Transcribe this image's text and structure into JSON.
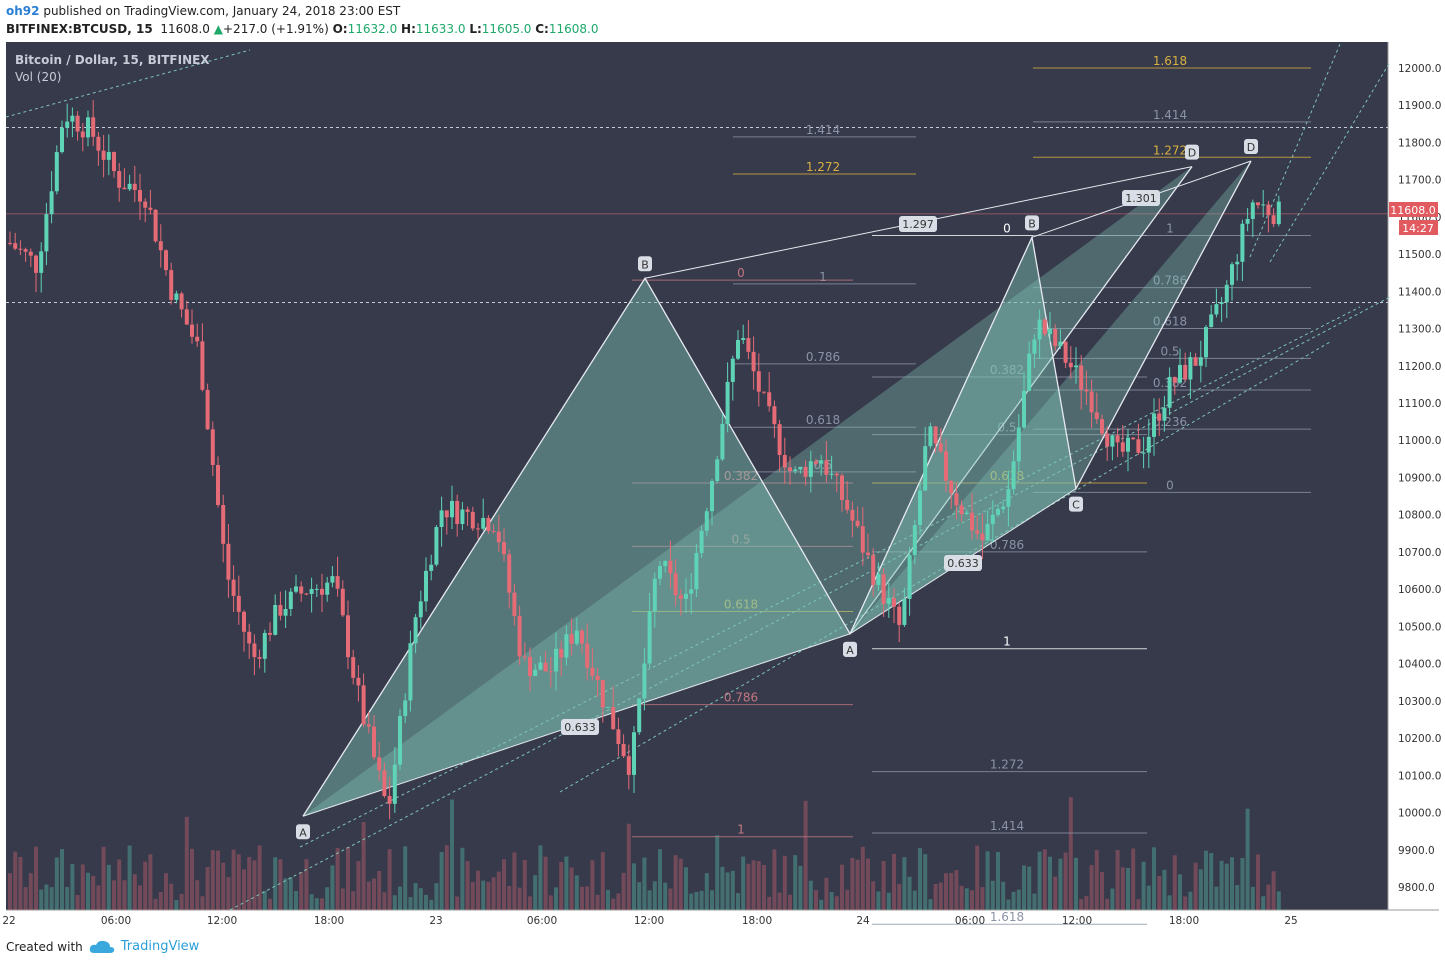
{
  "header": {
    "author": "oh92",
    "published_text": "published on TradingView.com, January 24, 2018 23:00 EST",
    "symbol": "BITFINEX:BTCUSD, 15",
    "last": "11608.0",
    "change": "+217.0 (+1.91%)",
    "o_label": "O:",
    "o": "11632.0",
    "h_label": "H:",
    "h": "11633.0",
    "l_label": "L:",
    "l": "11605.0",
    "c_label": "C:",
    "c": "11608.0"
  },
  "legend": {
    "title": "Bitcoin / Dollar, 15, BITFINEX",
    "vol": "Vol (20)"
  },
  "price_tag": {
    "value": "11608.0",
    "countdown": "14:27"
  },
  "footer": {
    "created_with": "Created with",
    "brand": "TradingView"
  },
  "colors": {
    "background": "#363a4b",
    "bull": "#5fd3b6",
    "bear": "#e56b76",
    "fill": "#7fc3b4",
    "gold": "#d9b040",
    "gray_text": "#8a93a6",
    "price_tag": "#e05a5f"
  },
  "chart_data": {
    "type": "candlestick",
    "ylim": [
      9700,
      12100
    ],
    "y_ticks": [
      9800,
      9900,
      10000,
      10100,
      10200,
      10300,
      10400,
      10500,
      10600,
      10700,
      10800,
      10900,
      11000,
      11100,
      11200,
      11300,
      11400,
      11500,
      11600,
      11700,
      11800,
      11900,
      12000
    ],
    "y_tick_labels": [
      "9800.0",
      "9900.0",
      "10000.0",
      "10100.0",
      "10200.0",
      "10300.0",
      "10400.0",
      "10500.0",
      "10600.0",
      "10700.0",
      "10800.0",
      "10900.0",
      "11000.0",
      "11100.0",
      "11200.0",
      "11300.0",
      "11400.0",
      "11500.0",
      "11600.0",
      "11700.0",
      "11800.0",
      "11900.0",
      "12000.0"
    ],
    "x_tick_labels": [
      "22",
      "06:00",
      "12:00",
      "18:00",
      "23",
      "06:00",
      "12:00",
      "18:00",
      "24",
      "06:00",
      "12:00",
      "18:00",
      "25"
    ],
    "price_path": [
      11530,
      11470,
      11880,
      11830,
      11700,
      11660,
      11400,
      11240,
      10650,
      10410,
      10550,
      10600,
      10620,
      10280,
      10000,
      10520,
      10820,
      10800,
      10780,
      10400,
      10380,
      10500,
      10300,
      10120,
      10680,
      10550,
      10900,
      11300,
      11080,
      10900,
      10960,
      10820,
      10640,
      10490,
      11020,
      10850,
      10730,
      10870,
      11320,
      11230,
      11120,
      10960,
      10990,
      11150,
      11220,
      11390,
      11640,
      11608
    ],
    "harmonic_patterns": [
      {
        "name": "pattern-1",
        "points": [
          {
            "label": "A",
            "price": 9990
          },
          {
            "label": "B",
            "price": 11435
          },
          {
            "label": "C",
            "price": 10480
          },
          {
            "label": "D",
            "price": 11735
          }
        ],
        "ab_ratio": "0.633",
        "abd_ratio": "1.297"
      },
      {
        "name": "pattern-2",
        "points": [
          {
            "label": "A",
            "price": 10480
          },
          {
            "label": "B",
            "price": 11545
          },
          {
            "label": "C",
            "price": 10870
          },
          {
            "label": "D",
            "price": 11750
          }
        ],
        "ab_ratio": "0.633",
        "abd_ratio": "1.301"
      }
    ],
    "fib_sets": [
      {
        "name": "fib-B-A",
        "levels": [
          {
            "label": "1.414",
            "price": 11815,
            "color": "#8a93a6"
          },
          {
            "label": "1.272",
            "price": 11715,
            "color": "#d9b040"
          },
          {
            "label": "1",
            "price": 11420,
            "color": "#8a93a6"
          },
          {
            "label": "0.786",
            "price": 11205,
            "color": "#8a93a6"
          },
          {
            "label": "0.618",
            "price": 11035,
            "color": "#8a93a6"
          },
          {
            "label": "0.5",
            "price": 10915,
            "color": "#8a93a6"
          }
        ]
      },
      {
        "name": "fib-A-B",
        "levels": [
          {
            "label": "0",
            "price": 11430,
            "color": "#c47780"
          },
          {
            "label": "0.382",
            "price": 10885,
            "color": "#c47780"
          },
          {
            "label": "0.5",
            "price": 10715,
            "color": "#c47780"
          },
          {
            "label": "0.618",
            "price": 10540,
            "color": "#d9b040"
          },
          {
            "label": "0.786",
            "price": 10290,
            "color": "#c47780"
          },
          {
            "label": "1",
            "price": 9935,
            "color": "#c47780"
          }
        ]
      },
      {
        "name": "fib-C-A-B",
        "levels": [
          {
            "label": "0",
            "price": 11550,
            "color": "#ffffff"
          },
          {
            "label": "0.382",
            "price": 11170,
            "color": "#8a93a6"
          },
          {
            "label": "0.5",
            "price": 11015,
            "color": "#8a93a6"
          },
          {
            "label": "0.618",
            "price": 10885,
            "color": "#d9b040"
          },
          {
            "label": "0.786",
            "price": 10700,
            "color": "#8a93a6"
          },
          {
            "label": "1",
            "price": 10440,
            "color": "#ffffff"
          },
          {
            "label": "1.272",
            "price": 10110,
            "color": "#8a93a6"
          },
          {
            "label": "1.414",
            "price": 9945,
            "color": "#8a93a6"
          },
          {
            "label": "1.618",
            "price": 9700,
            "color": "#8a93a6"
          }
        ]
      },
      {
        "name": "fib-right",
        "levels": [
          {
            "label": "1.618",
            "price": 12000,
            "color": "#d9b040"
          },
          {
            "label": "1.414",
            "price": 11855,
            "color": "#8a93a6"
          },
          {
            "label": "1.272",
            "price": 11760,
            "color": "#d9b040"
          },
          {
            "label": "1",
            "price": 11550,
            "color": "#8a93a6"
          },
          {
            "label": "0.786",
            "price": 11410,
            "color": "#8a93a6"
          },
          {
            "label": "0.618",
            "price": 11300,
            "color": "#8a93a6"
          },
          {
            "label": "0.5",
            "price": 11220,
            "color": "#8a93a6"
          },
          {
            "label": "0.382",
            "price": 11135,
            "color": "#8a93a6"
          },
          {
            "label": "0.236",
            "price": 11030,
            "color": "#8a93a6"
          },
          {
            "label": "0",
            "price": 10860,
            "color": "#8a93a6"
          }
        ]
      }
    ],
    "horizontal_lines": [
      11840,
      11370
    ],
    "current_price": 11608
  }
}
